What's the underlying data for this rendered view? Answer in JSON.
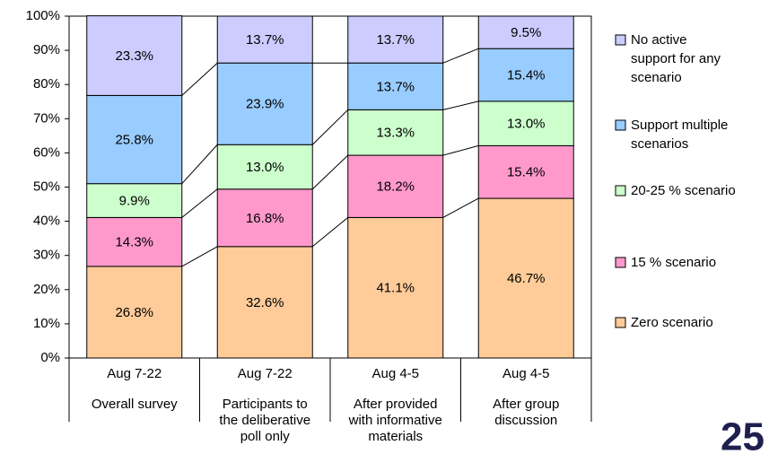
{
  "chart_data": {
    "type": "stacked-bar",
    "categories": [
      "Aug 7-22",
      "Aug 7-22",
      "Aug 4-5",
      "Aug 4-5"
    ],
    "sublabels": [
      "Overall survey",
      "Participants to the deliberative poll only",
      "After provided with informative materials",
      "After group discussion"
    ],
    "series": [
      {
        "name": "Zero scenario",
        "color": "#ffcc99",
        "values": [
          26.8,
          32.6,
          41.1,
          46.7
        ],
        "value_labels": [
          "26.8%",
          "32.6%",
          "41.1%",
          "46.7%"
        ]
      },
      {
        "name": "15 % scenario",
        "color": "#ff99cc",
        "values": [
          14.3,
          16.8,
          18.2,
          15.4
        ],
        "value_labels": [
          "14.3%",
          "16.8%",
          "18.2%",
          "15.4%"
        ]
      },
      {
        "name": "20-25 % scenario",
        "color": "#ccffcc",
        "values": [
          9.9,
          13.0,
          13.3,
          13.0
        ],
        "value_labels": [
          "9.9%",
          "13.0%",
          "13.3%",
          "13.0%"
        ]
      },
      {
        "name": "Support multiple scenarios",
        "color": "#99ccff",
        "values": [
          25.8,
          23.9,
          13.7,
          15.4
        ],
        "value_labels": [
          "25.8%",
          "23.9%",
          "13.7%",
          "15.4%"
        ]
      },
      {
        "name": "No active support for any scenario",
        "color": "#ccccff",
        "values": [
          23.3,
          13.7,
          13.7,
          9.5
        ],
        "value_labels": [
          "23.3%",
          "13.7%",
          "13.7%",
          "9.5%"
        ]
      }
    ],
    "ylim": [
      0,
      100
    ],
    "yticks": [
      {
        "value": 0,
        "label": "0%"
      },
      {
        "value": 10,
        "label": "10%"
      },
      {
        "value": 20,
        "label": "20%"
      },
      {
        "value": 30,
        "label": "30%"
      },
      {
        "value": 40,
        "label": "40%"
      },
      {
        "value": 50,
        "label": "50%"
      },
      {
        "value": 60,
        "label": "60%"
      },
      {
        "value": 70,
        "label": "70%"
      },
      {
        "value": 80,
        "label": "80%"
      },
      {
        "value": 90,
        "label": "90%"
      },
      {
        "value": 100,
        "label": "100%"
      }
    ],
    "legend": "right",
    "page_number": "25"
  }
}
